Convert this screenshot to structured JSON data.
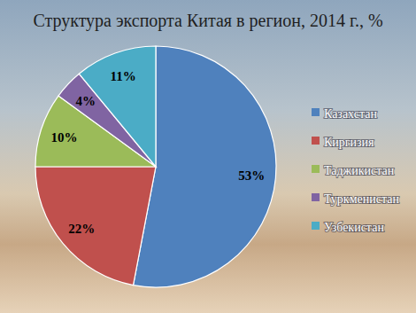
{
  "chart_data": {
    "type": "pie",
    "title": "Структура экспорта Китая в регион, 2014 г., %",
    "categories": [
      "Казахстан",
      "Киргизия",
      "Таджикистан",
      "Туркменистан",
      "Узбекистан"
    ],
    "values": [
      53,
      22,
      10,
      4,
      11
    ],
    "value_labels": [
      "53%",
      "22%",
      "10%",
      "4%",
      "11%"
    ],
    "colors": [
      "#4f81bd",
      "#c0504d",
      "#9bbb59",
      "#8064a2",
      "#4bacc6"
    ],
    "data_labels": true,
    "legend": "right"
  }
}
